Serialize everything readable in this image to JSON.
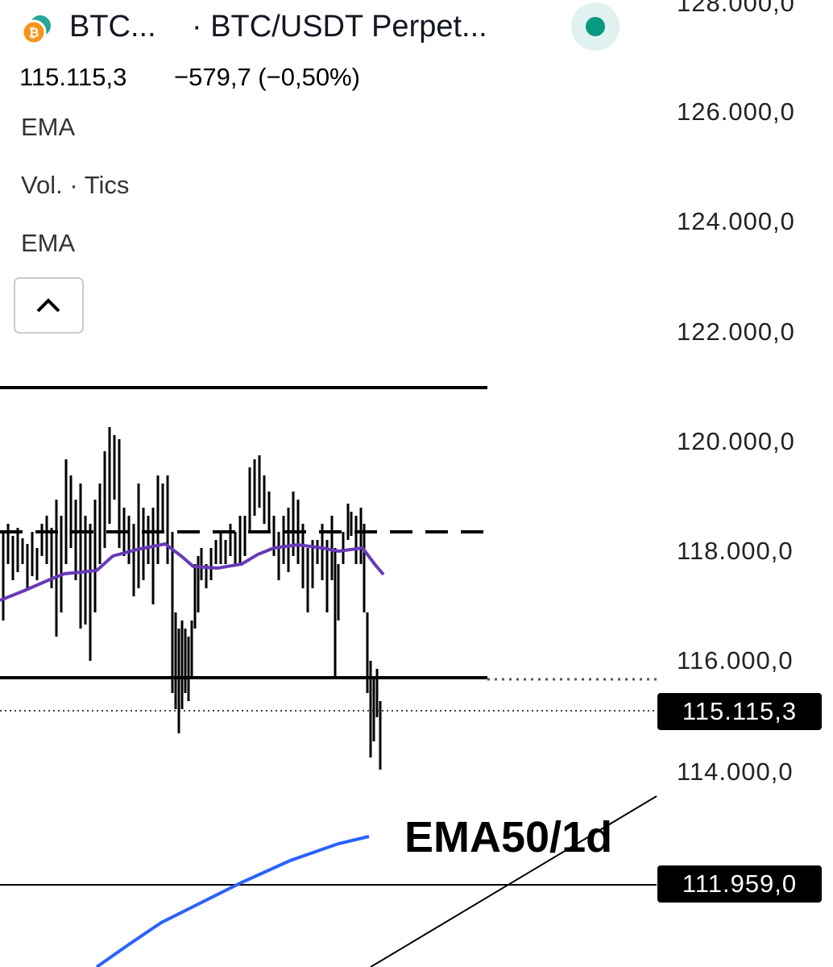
{
  "header": {
    "symbol": "BTC...",
    "pair": "· BTC/USDT Perpet...",
    "price": "115.115,3",
    "change": "−579,7 (−0,50%)"
  },
  "indicators": [
    "EMA",
    "Vol. · Tics",
    "EMA"
  ],
  "axis_labels": [
    "128.000,0",
    "126.000,0",
    "124.000,0",
    "122.000,0",
    "120.000,0",
    "118.000,0",
    "116.000,0",
    "114.000,0"
  ],
  "price_tags": [
    "115.115,3",
    "111.959,0"
  ],
  "annotation": "EMA50/1d"
}
